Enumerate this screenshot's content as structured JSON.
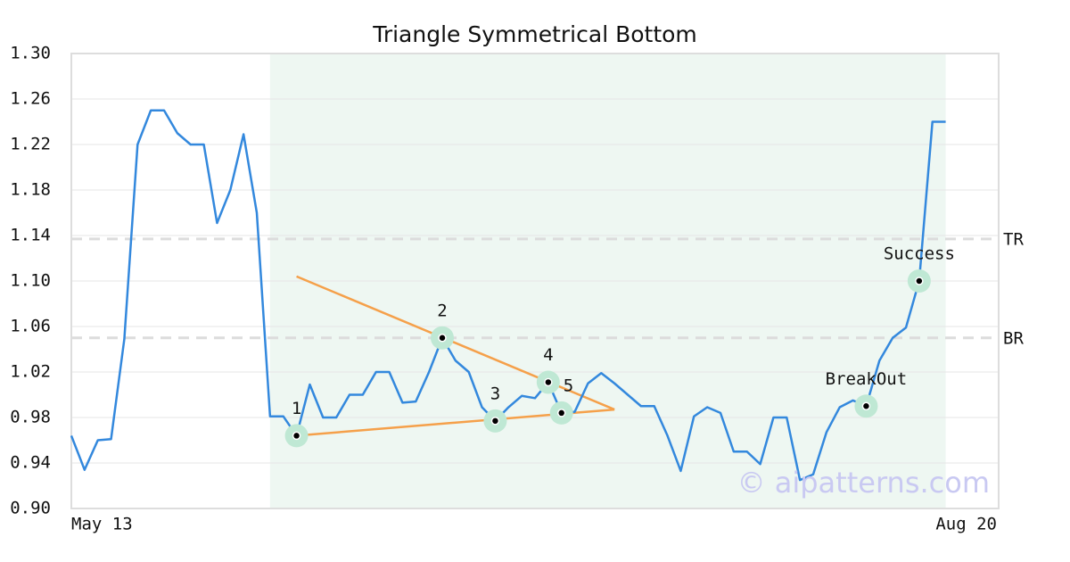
{
  "chart_data": {
    "type": "line",
    "title": "Triangle Symmetrical Bottom",
    "categories": [
      "May 13",
      null,
      null,
      null,
      null,
      null,
      null,
      null,
      null,
      null,
      null,
      null,
      null,
      null,
      null,
      null,
      null,
      null,
      null,
      null,
      null,
      null,
      null,
      null,
      null,
      null,
      null,
      null,
      null,
      null,
      null,
      null,
      null,
      null,
      null,
      null,
      null,
      null,
      null,
      null,
      null,
      null,
      null,
      null,
      null,
      null,
      null,
      null,
      null,
      null,
      null,
      null,
      null,
      null,
      null,
      null,
      null,
      null,
      null,
      null,
      null,
      null,
      null,
      null,
      null,
      null,
      null,
      null,
      null,
      null,
      "Aug 20"
    ],
    "series": [
      {
        "color": "#3388dd",
        "values": [
          0.964,
          0.934,
          0.96,
          0.961,
          1.049,
          1.22,
          1.25,
          1.25,
          1.23,
          1.22,
          1.22,
          1.151,
          1.18,
          1.229,
          1.16,
          0.981,
          0.981,
          0.964,
          1.009,
          0.98,
          0.98,
          1.0,
          1.0,
          1.02,
          1.02,
          0.993,
          0.994,
          1.02,
          1.05,
          1.03,
          1.02,
          0.989,
          0.977,
          0.989,
          0.999,
          0.997,
          1.011,
          0.984,
          0.985,
          1.01,
          1.019,
          1.01,
          1.0,
          0.99,
          0.99,
          0.964,
          0.933,
          0.981,
          0.989,
          0.984,
          0.95,
          0.95,
          0.939,
          0.98,
          0.98,
          0.925,
          0.93,
          0.967,
          0.989,
          0.995,
          0.99,
          1.03,
          1.05,
          1.059,
          1.1,
          1.24,
          1.24,
          null,
          null,
          null,
          null
        ]
      }
    ],
    "ylim": [
      0.9,
      1.3
    ],
    "yticks": [
      {
        "value": 0.9,
        "label": "0.90"
      },
      0.94,
      0.98,
      1.02,
      1.06,
      {
        "value": 1.1,
        "label": "1.10"
      },
      1.14,
      1.18,
      1.22,
      1.26,
      {
        "value": 1.3,
        "label": "1.30"
      }
    ],
    "grid": true,
    "highlight_range": [
      15,
      66
    ],
    "highlight_color": "#eef7f2",
    "reference_lines": [
      {
        "label": "TR",
        "value": 1.137
      },
      {
        "label": "BR",
        "value": 1.05
      }
    ],
    "trendlines": [
      {
        "color": "#f5a04a",
        "x": [
          17,
          41
        ],
        "values": [
          1.104,
          0.987
        ]
      },
      {
        "color": "#f5a04a",
        "x": [
          17,
          41
        ],
        "values": [
          0.964,
          0.987
        ]
      }
    ],
    "markers": [
      {
        "label": "1",
        "x": 17,
        "value": 0.964
      },
      {
        "label": "2",
        "x": 28,
        "value": 1.05
      },
      {
        "label": "3",
        "x": 32,
        "value": 0.977
      },
      {
        "label": "4",
        "x": 36,
        "value": 1.011
      },
      {
        "label": "5",
        "x": 37,
        "value": 0.984
      },
      {
        "label": "BreakOut",
        "x": 60,
        "value": 0.99
      },
      {
        "label": "Success",
        "x": 64,
        "value": 1.1
      }
    ],
    "watermark": "© aipatterns.com"
  }
}
